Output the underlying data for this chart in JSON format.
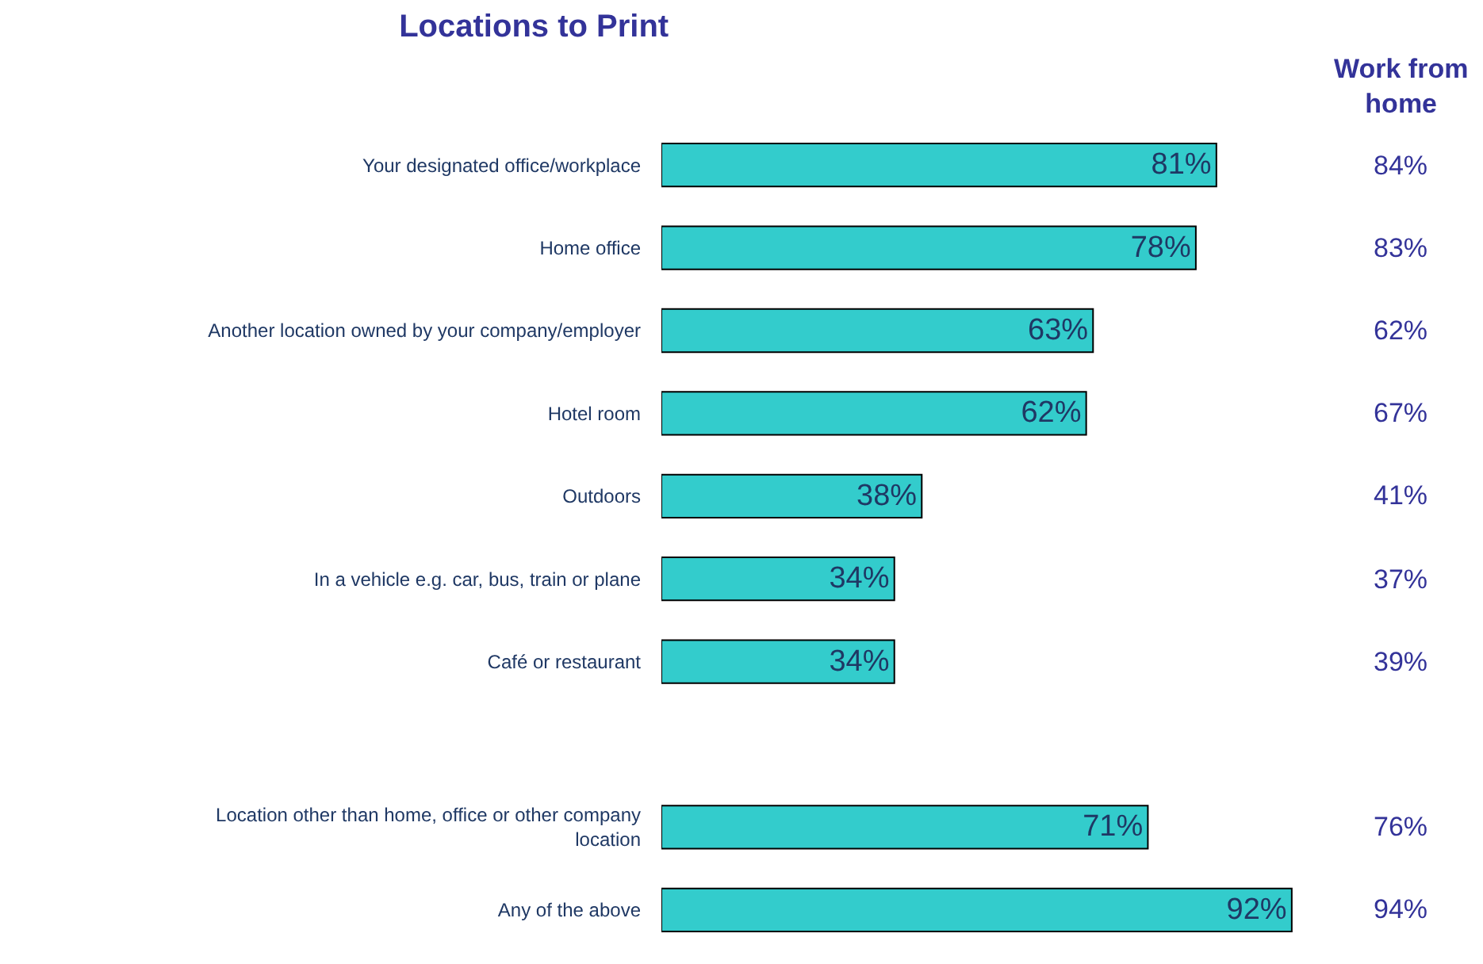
{
  "chart_data": {
    "type": "bar",
    "orientation": "horizontal",
    "title": "Locations to Print",
    "categories": [
      "Your designated office/workplace",
      "Home office",
      "Another location owned by your company/employer",
      "Hotel room",
      "Outdoors",
      "In a vehicle e.g. car, bus, train or plane",
      "Café or restaurant",
      null,
      "Location other than home, office or other company location",
      "Any of the above"
    ],
    "values": [
      81,
      78,
      63,
      62,
      38,
      34,
      34,
      null,
      71,
      92
    ],
    "value_labels": [
      "81%",
      "78%",
      "63%",
      "62%",
      "38%",
      "34%",
      "34%",
      null,
      "71%",
      "92%"
    ],
    "color": "#33cccc",
    "annotations": [
      "Work from home",
      "84%",
      "83%",
      "62%",
      "67%",
      "41%",
      "37%",
      "39%",
      "76%",
      "94%"
    ],
    "tick_labels": "y"
  }
}
